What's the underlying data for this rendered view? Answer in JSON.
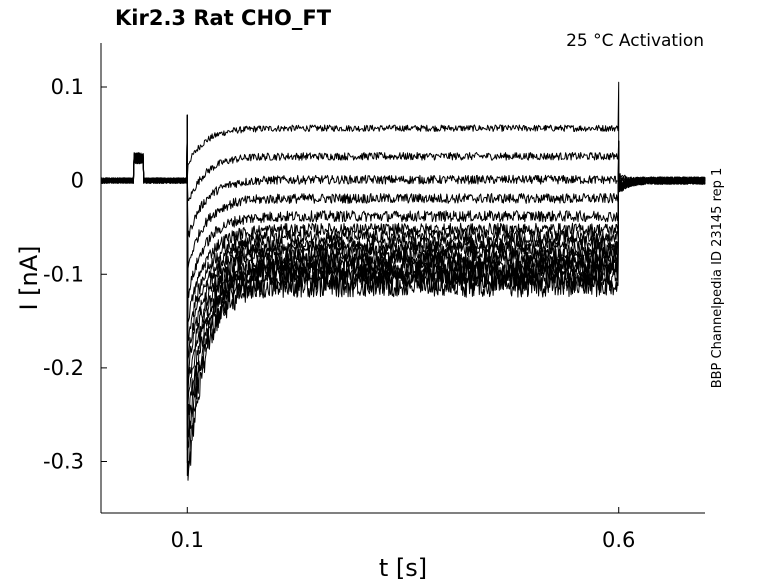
{
  "chart_data": {
    "type": "line",
    "title": "Kir2.3  Rat  CHO_FT",
    "subtitle": "25 °C  Activation",
    "side_label": "BBP Channelpedia ID 23145 rep 1",
    "xlabel": "t [s]",
    "ylabel": "I [nA]",
    "xlim": [
      0.0,
      0.7
    ],
    "ylim": [
      -0.355,
      0.147
    ],
    "x_ticks": [
      0.1,
      0.6
    ],
    "x_tick_labels": [
      "0.1",
      "0.6"
    ],
    "y_ticks": [
      0.1,
      0,
      -0.1,
      -0.2,
      -0.3
    ],
    "y_tick_labels": [
      "0.1",
      "0",
      "-0.1",
      "-0.2",
      "-0.3"
    ],
    "grid": false,
    "legend": "none",
    "line_color": "#000000",
    "protocol": {
      "step_start_s": 0.1,
      "step_end_s": 0.6,
      "artifact_start_s": 0.038,
      "artifact_end_s": 0.049,
      "artifact_level_nA": 0.03,
      "end_spike_peak_nA": 0.105,
      "onset_spike_peak_nA": 0.07,
      "onset_min_nA": -0.315
    },
    "series": [
      {
        "values_note": "",
        "steady_nA": 0.056
      },
      {
        "steady_nA": 0.026
      },
      {
        "steady_nA": 0.001
      },
      {
        "steady_nA": -0.019
      },
      {
        "steady_nA": -0.038
      },
      {
        "steady_nA": -0.052
      },
      {
        "steady_nA": -0.06
      },
      {
        "steady_nA": -0.067
      },
      {
        "steady_nA": -0.073
      },
      {
        "steady_nA": -0.079
      },
      {
        "steady_nA": -0.085
      },
      {
        "steady_nA": -0.09
      },
      {
        "steady_nA": -0.095
      },
      {
        "steady_nA": -0.1
      },
      {
        "steady_nA": -0.106
      },
      {
        "steady_nA": -0.112
      }
    ]
  }
}
